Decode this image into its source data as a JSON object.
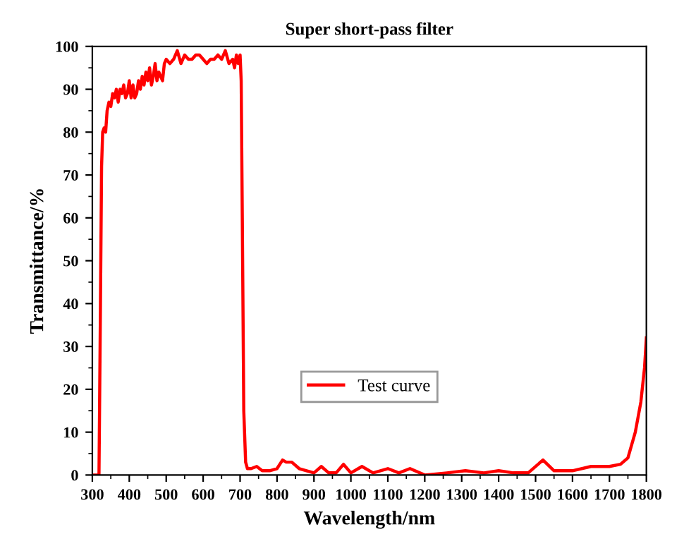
{
  "chart_data": {
    "type": "line",
    "title": "Super short-pass filter",
    "xlabel": "Wavelength/nm",
    "ylabel": "Transmittance/%",
    "xlim": [
      300,
      1800
    ],
    "xticks": [
      300,
      400,
      500,
      600,
      700,
      800,
      900,
      1000,
      1100,
      1200,
      1300,
      1400,
      1500,
      1600,
      1700,
      1800
    ],
    "ylim": [
      0,
      100
    ],
    "yticks": [
      0,
      10,
      20,
      30,
      40,
      50,
      60,
      70,
      80,
      90,
      100
    ],
    "grid": false,
    "legend": "bottom",
    "marker": "none",
    "line_style": "solid",
    "series": [
      {
        "name": "Test curve",
        "color": "#ff0000",
        "x": [
          300,
          318,
          322,
          325,
          328,
          332,
          336,
          340,
          345,
          350,
          355,
          360,
          365,
          370,
          375,
          380,
          385,
          390,
          395,
          400,
          405,
          410,
          415,
          420,
          425,
          430,
          435,
          440,
          445,
          450,
          455,
          460,
          465,
          470,
          475,
          480,
          485,
          490,
          495,
          500,
          510,
          520,
          530,
          540,
          550,
          560,
          570,
          580,
          590,
          600,
          610,
          620,
          630,
          640,
          650,
          660,
          670,
          680,
          685,
          690,
          695,
          700,
          703,
          706,
          710,
          715,
          720,
          730,
          745,
          760,
          780,
          800,
          815,
          825,
          840,
          860,
          880,
          900,
          920,
          940,
          960,
          980,
          1000,
          1030,
          1060,
          1100,
          1130,
          1160,
          1200,
          1260,
          1310,
          1360,
          1400,
          1440,
          1480,
          1520,
          1550,
          1600,
          1650,
          1700,
          1730,
          1750,
          1770,
          1785,
          1795,
          1800
        ],
        "values": [
          0,
          0,
          40,
          72,
          80,
          81,
          80,
          85,
          87,
          86,
          89,
          88,
          90,
          87,
          90,
          89,
          91,
          88,
          89,
          92,
          88,
          91,
          88,
          89,
          92,
          90,
          93,
          91,
          94,
          92,
          95,
          91,
          93,
          96,
          92,
          94,
          93,
          92,
          96,
          97,
          96,
          97,
          99,
          96,
          98,
          97,
          97,
          98,
          98,
          97,
          96,
          97,
          97,
          98,
          97,
          99,
          96,
          97,
          95,
          98,
          96,
          98,
          92,
          60,
          15,
          3,
          1.5,
          1.5,
          2,
          1,
          1,
          1.5,
          3.5,
          3,
          3,
          1.5,
          1,
          0.5,
          2,
          0.5,
          0.5,
          2.5,
          0.5,
          2,
          0.5,
          1.5,
          0.5,
          1.5,
          0,
          0.5,
          1,
          0.5,
          1,
          0.5,
          0.5,
          3.5,
          1,
          1,
          2,
          2,
          2.5,
          4,
          10,
          17,
          25,
          32
        ]
      }
    ]
  }
}
